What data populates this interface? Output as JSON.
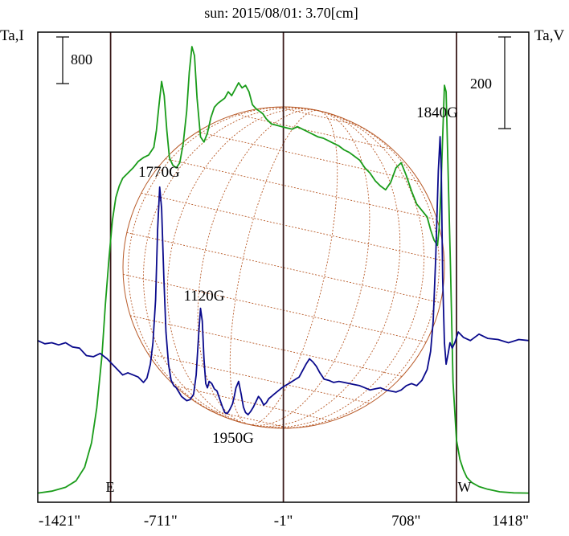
{
  "chart_data": {
    "type": "line",
    "title": "sun: 2015/08/01: 3.70[cm]",
    "y_left_label": "Ta,I",
    "y_right_label": "Ta,V",
    "scale_bar_left": "800",
    "scale_bar_right": "200",
    "x_ticks": [
      "-1421\"",
      "-711\"",
      "-1\"",
      "708\"",
      "1418\""
    ],
    "x_tick_values": [
      -1421,
      -711,
      -1,
      708,
      1418
    ],
    "xlim": [
      -1421,
      1418
    ],
    "limb_labels": {
      "east": "E",
      "west": "W"
    },
    "limb_positions": [
      -1000,
      1000
    ],
    "center_line": -1,
    "annotations": [
      {
        "text": "1770G",
        "x": -711
      },
      {
        "text": "1120G",
        "x": -456
      },
      {
        "text": "1950G",
        "x": -300
      },
      {
        "text": "1840G",
        "x": 925
      }
    ],
    "colors": {
      "intensity": "#1a9c1a",
      "polarization": "#0a0a8c",
      "sun_grid": "#b85a28",
      "frame": "#000000",
      "vline": "#3a1a1a",
      "title": "#0a0a8c"
    },
    "series": [
      {
        "key": "intensity",
        "x": [
          -1421,
          -1340,
          -1260,
          -1200,
          -1150,
          -1110,
          -1080,
          -1050,
          -1030,
          -1010,
          -990,
          -970,
          -950,
          -930,
          -900,
          -870,
          -840,
          -810,
          -780,
          -750,
          -735,
          -720,
          -705,
          -690,
          -675,
          -660,
          -640,
          -620,
          -600,
          -580,
          -560,
          -545,
          -530,
          -515,
          -500,
          -480,
          -460,
          -440,
          -420,
          -400,
          -380,
          -360,
          -340,
          -320,
          -300,
          -280,
          -260,
          -240,
          -220,
          -200,
          -180,
          -160,
          -140,
          -120,
          -100,
          -70,
          -40,
          -10,
          20,
          50,
          80,
          110,
          140,
          170,
          200,
          230,
          260,
          290,
          320,
          350,
          380,
          410,
          440,
          470,
          500,
          530,
          560,
          590,
          620,
          650,
          680,
          710,
          740,
          770,
          800,
          830,
          850,
          870,
          890,
          900,
          910,
          920,
          930,
          940,
          950,
          965,
          980,
          1000,
          1020,
          1040,
          1060,
          1090,
          1130,
          1180,
          1250,
          1330,
          1418
        ],
        "y": [
          40,
          55,
          85,
          135,
          240,
          430,
          700,
          1100,
          1500,
          1850,
          2150,
          2330,
          2420,
          2480,
          2520,
          2560,
          2610,
          2640,
          2660,
          2720,
          2850,
          3050,
          3230,
          3120,
          2850,
          2640,
          2580,
          2560,
          2600,
          2750,
          3000,
          3300,
          3500,
          3430,
          3100,
          2800,
          2760,
          2830,
          2950,
          3030,
          3060,
          3080,
          3100,
          3150,
          3120,
          3170,
          3220,
          3180,
          3200,
          3150,
          3050,
          3020,
          3000,
          2980,
          2940,
          2900,
          2890,
          2880,
          2870,
          2860,
          2880,
          2860,
          2840,
          2820,
          2800,
          2790,
          2770,
          2750,
          2730,
          2700,
          2680,
          2650,
          2620,
          2560,
          2520,
          2460,
          2420,
          2390,
          2450,
          2560,
          2600,
          2500,
          2380,
          2280,
          2230,
          2180,
          2080,
          2000,
          1960,
          2100,
          2400,
          2800,
          3200,
          3150,
          2600,
          1800,
          900,
          450,
          300,
          220,
          160,
          120,
          90,
          70,
          50,
          42,
          40
        ]
      },
      {
        "key": "polarization",
        "x": [
          -1421,
          -1380,
          -1340,
          -1300,
          -1260,
          -1220,
          -1180,
          -1140,
          -1100,
          -1060,
          -1020,
          -990,
          -960,
          -930,
          -900,
          -870,
          -840,
          -810,
          -790,
          -770,
          -755,
          -740,
          -728,
          -716,
          -705,
          -692,
          -680,
          -665,
          -650,
          -635,
          -620,
          -605,
          -590,
          -575,
          -560,
          -540,
          -520,
          -505,
          -490,
          -480,
          -470,
          -460,
          -450,
          -440,
          -430,
          -415,
          -400,
          -385,
          -370,
          -355,
          -340,
          -325,
          -310,
          -295,
          -285,
          -275,
          -260,
          -245,
          -232,
          -220,
          -205,
          -190,
          -175,
          -160,
          -145,
          -130,
          -115,
          -100,
          -85,
          -70,
          -55,
          -40,
          -25,
          -10,
          10,
          30,
          50,
          70,
          90,
          110,
          130,
          150,
          170,
          190,
          210,
          235,
          260,
          290,
          320,
          350,
          380,
          410,
          440,
          470,
          500,
          530,
          560,
          590,
          620,
          650,
          680,
          710,
          740,
          770,
          800,
          830,
          850,
          865,
          880,
          895,
          905,
          912,
          920,
          930,
          940,
          952,
          962,
          975,
          990,
          1010,
          1040,
          1080,
          1130,
          1180,
          1240,
          1300,
          1360,
          1418
        ],
        "y": [
          72,
          69,
          70,
          68,
          70,
          66,
          65,
          58,
          57,
          60,
          55,
          50,
          45,
          40,
          42,
          40,
          38,
          33,
          37,
          50,
          70,
          110,
          175,
          215,
          195,
          130,
          80,
          50,
          35,
          30,
          28,
          24,
          20,
          18,
          16,
          17,
          22,
          40,
          80,
          102,
          90,
          55,
          32,
          28,
          34,
          32,
          27,
          25,
          18,
          11,
          5,
          4,
          8,
          13,
          20,
          28,
          34,
          22,
          10,
          5,
          3,
          6,
          10,
          15,
          20,
          17,
          12,
          14,
          18,
          20,
          22,
          24,
          26,
          28,
          30,
          32,
          34,
          36,
          38,
          44,
          50,
          55,
          52,
          48,
          42,
          36,
          35,
          33,
          34,
          33,
          32,
          31,
          30,
          28,
          26,
          27,
          28,
          26,
          25,
          24,
          26,
          30,
          32,
          30,
          35,
          45,
          62,
          90,
          150,
          230,
          262,
          230,
          130,
          70,
          50,
          60,
          70,
          65,
          70,
          80,
          75,
          72,
          78,
          74,
          73,
          70,
          73,
          72
        ]
      }
    ]
  }
}
